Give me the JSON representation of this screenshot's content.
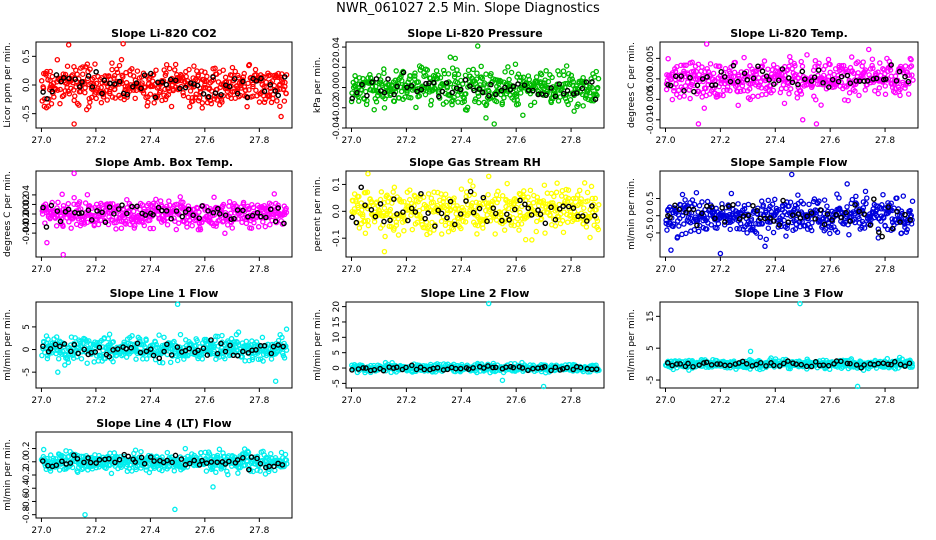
{
  "figure": {
    "title": "NWR_061027  2.5 Min. Slope Diagnostics"
  },
  "chart_data": [
    {
      "type": "scatter",
      "title": "Slope Li-820 CO2",
      "ylabel": "Licor ppm per min.",
      "xlim": [
        26.98,
        27.92
      ],
      "ylim": [
        -0.75,
        0.75
      ],
      "x_ticks": [
        27.0,
        27.2,
        27.4,
        27.6,
        27.8
      ],
      "x_tick_labels": [
        "27.0",
        "27.2",
        "27.4",
        "27.6",
        "27.8"
      ],
      "y_ticks": [
        -0.5,
        0.0,
        0.5
      ],
      "y_tick_labels": [
        "-0.5",
        "0.0",
        "0.5"
      ],
      "color": "#ff0000",
      "amp": 0.3,
      "n": 480,
      "n_black": 55,
      "spikes": [
        [
          27.1,
          0.7
        ],
        [
          27.3,
          0.72
        ],
        [
          27.12,
          -0.68
        ],
        [
          27.88,
          -0.55
        ]
      ]
    },
    {
      "type": "scatter",
      "title": "Slope Li-820 Pressure",
      "ylabel": "kPa per min.",
      "xlim": [
        26.98,
        27.92
      ],
      "ylim": [
        -0.04,
        0.045
      ],
      "x_ticks": [
        27.0,
        27.2,
        27.4,
        27.6,
        27.8
      ],
      "x_tick_labels": [
        "27.0",
        "27.2",
        "27.4",
        "27.6",
        "27.8"
      ],
      "y_ticks": [
        -0.04,
        -0.02,
        0.0,
        0.02,
        0.04
      ],
      "y_tick_labels": [
        "-0.04",
        "-0.02",
        "0.00",
        "0.02",
        "0.04"
      ],
      "color": "#00bb00",
      "amp": 0.016,
      "n": 480,
      "n_black": 55,
      "spikes": [
        [
          27.46,
          0.041
        ],
        [
          27.49,
          -0.03
        ],
        [
          27.52,
          -0.036
        ],
        [
          27.36,
          0.03
        ]
      ]
    },
    {
      "type": "scatter",
      "title": "Slope Li-820 Temp.",
      "ylabel": "degrees C per min.",
      "xlim": [
        26.98,
        27.92
      ],
      "ylim": [
        -0.012,
        0.009
      ],
      "x_ticks": [
        27.0,
        27.2,
        27.4,
        27.6,
        27.8
      ],
      "x_tick_labels": [
        "27.0",
        "27.2",
        "27.4",
        "27.6",
        "27.8"
      ],
      "y_ticks": [
        -0.01,
        -0.005,
        0.0,
        0.005
      ],
      "y_tick_labels": [
        "-0.010",
        "-0.005",
        "0.000",
        "0.005"
      ],
      "color": "#ff00ff",
      "amp": 0.004,
      "n": 480,
      "n_black": 55,
      "spikes": [
        [
          27.15,
          0.0085
        ],
        [
          27.12,
          -0.011
        ],
        [
          27.55,
          -0.011
        ],
        [
          27.5,
          -0.01
        ]
      ]
    },
    {
      "type": "scatter",
      "title": "Slope Amb. Box Temp.",
      "ylabel": "degrees C per min.",
      "xlim": [
        26.98,
        27.92
      ],
      "ylim": [
        -0.09,
        0.09
      ],
      "x_ticks": [
        27.0,
        27.2,
        27.4,
        27.6,
        27.8
      ],
      "x_tick_labels": [
        "27.0",
        "27.2",
        "27.4",
        "27.6",
        "27.8"
      ],
      "y_ticks": [
        -0.04,
        -0.02,
        0.0,
        0.02,
        0.04
      ],
      "y_tick_labels": [
        "-0.04",
        "-0.02",
        "0.00",
        "0.02",
        "0.04"
      ],
      "color": "#ff00ff",
      "amp": 0.025,
      "n": 480,
      "n_black": 55,
      "spikes": [
        [
          27.12,
          0.085
        ],
        [
          27.08,
          -0.085
        ],
        [
          27.02,
          -0.06
        ]
      ]
    },
    {
      "type": "scatter",
      "title": "Slope Gas Stream RH",
      "ylabel": "percent per min.",
      "xlim": [
        26.98,
        27.92
      ],
      "ylim": [
        -0.17,
        0.15
      ],
      "x_ticks": [
        27.0,
        27.2,
        27.4,
        27.6,
        27.8
      ],
      "x_tick_labels": [
        "27.0",
        "27.2",
        "27.4",
        "27.6",
        "27.8"
      ],
      "y_ticks": [
        -0.1,
        0.0,
        0.1
      ],
      "y_tick_labels": [
        "-0.1",
        "0.0",
        "0.1"
      ],
      "color": "#ffff00",
      "amp": 0.07,
      "n": 480,
      "n_black": 55,
      "spikes": [
        [
          27.06,
          0.14
        ],
        [
          27.12,
          -0.15
        ],
        [
          27.5,
          0.13
        ]
      ]
    },
    {
      "type": "scatter",
      "title": "Slope Sample Flow",
      "ylabel": "ml/min per min.",
      "xlim": [
        26.98,
        27.92
      ],
      "ylim": [
        -1.2,
        1.3
      ],
      "x_ticks": [
        27.0,
        27.2,
        27.4,
        27.6,
        27.8
      ],
      "x_tick_labels": [
        "27.0",
        "27.2",
        "27.4",
        "27.6",
        "27.8"
      ],
      "y_ticks": [
        -0.5,
        0.0,
        0.5
      ],
      "y_tick_labels": [
        "-0.5",
        "0.0",
        "0.5"
      ],
      "color": "#0000dd",
      "amp": 0.45,
      "n": 480,
      "n_black": 55,
      "spikes": [
        [
          27.46,
          1.2
        ],
        [
          27.2,
          -1.1
        ],
        [
          27.02,
          -1.0
        ]
      ]
    },
    {
      "type": "scatter",
      "title": "Slope Line 1 Flow",
      "ylabel": "ml/min per min.",
      "xlim": [
        26.98,
        27.92
      ],
      "ylim": [
        -8.5,
        10.5
      ],
      "x_ticks": [
        27.0,
        27.2,
        27.4,
        27.6,
        27.8
      ],
      "x_tick_labels": [
        "27.0",
        "27.2",
        "27.4",
        "27.6",
        "27.8"
      ],
      "y_ticks": [
        -5,
        0,
        5
      ],
      "y_tick_labels": [
        "-5",
        "0",
        "5"
      ],
      "color": "#00eeee",
      "amp": 2.3,
      "n": 480,
      "n_black": 55,
      "spikes": [
        [
          27.5,
          10
        ],
        [
          27.9,
          4.5
        ],
        [
          27.86,
          -7
        ],
        [
          27.06,
          -5
        ]
      ]
    },
    {
      "type": "scatter",
      "title": "Slope Line 2 Flow",
      "ylabel": "ml/min per min.",
      "xlim": [
        26.98,
        27.92
      ],
      "ylim": [
        -6.5,
        21.5
      ],
      "x_ticks": [
        27.0,
        27.2,
        27.4,
        27.6,
        27.8
      ],
      "x_tick_labels": [
        "27.0",
        "27.2",
        "27.4",
        "27.6",
        "27.8"
      ],
      "y_ticks": [
        -5,
        0,
        5,
        10,
        15,
        20
      ],
      "y_tick_labels": [
        "-5",
        "0",
        "5",
        "10",
        "15",
        "20"
      ],
      "color": "#00eeee",
      "amp": 1.1,
      "n": 480,
      "n_black": 55,
      "spikes": [
        [
          27.5,
          21
        ],
        [
          27.7,
          -6
        ],
        [
          27.55,
          -4
        ]
      ]
    },
    {
      "type": "scatter",
      "title": "Slope Line 3 Flow",
      "ylabel": "ml/min per min.",
      "xlim": [
        26.98,
        27.92
      ],
      "ylim": [
        -7.5,
        19.5
      ],
      "x_ticks": [
        27.0,
        27.2,
        27.4,
        27.6,
        27.8
      ],
      "x_tick_labels": [
        "27.0",
        "27.2",
        "27.4",
        "27.6",
        "27.8"
      ],
      "y_ticks": [
        -5,
        5,
        15
      ],
      "y_tick_labels": [
        "-5",
        "5",
        "15"
      ],
      "color": "#00eeee",
      "amp": 1.1,
      "n": 480,
      "n_black": 55,
      "spikes": [
        [
          27.49,
          19
        ],
        [
          27.31,
          4
        ],
        [
          27.7,
          -7
        ]
      ]
    },
    {
      "type": "scatter",
      "title": "Slope Line 4 (LT) Flow",
      "ylabel": "ml/min per min.",
      "xlim": [
        26.98,
        27.92
      ],
      "ylim": [
        -0.85,
        0.45
      ],
      "x_ticks": [
        27.0,
        27.2,
        27.4,
        27.6,
        27.8
      ],
      "x_tick_labels": [
        "27.0",
        "27.2",
        "27.4",
        "27.6",
        "27.8"
      ],
      "y_ticks": [
        -0.8,
        -0.6,
        -0.4,
        -0.2,
        0.0,
        0.2
      ],
      "y_tick_labels": [
        "-0.8",
        "-0.6",
        "-0.4",
        "-0.2",
        "0.0",
        "0.2"
      ],
      "color": "#00eeee",
      "amp": 0.12,
      "n": 480,
      "n_black": 55,
      "spikes": [
        [
          27.49,
          -0.72
        ],
        [
          27.16,
          -0.8
        ],
        [
          27.63,
          -0.38
        ]
      ]
    }
  ]
}
